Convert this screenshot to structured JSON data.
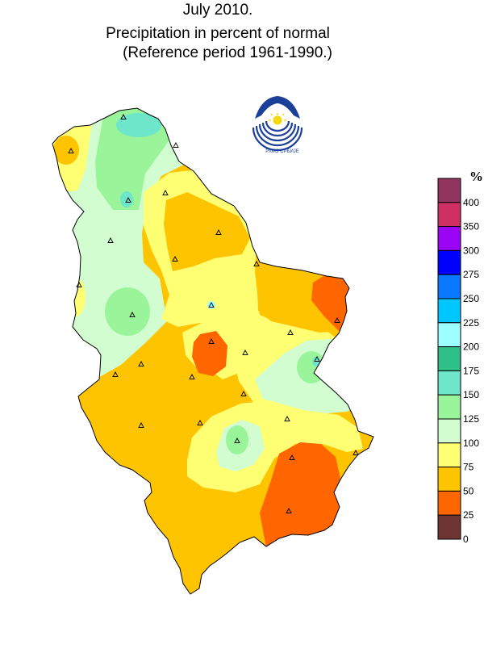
{
  "title": {
    "line1": "July 2010.",
    "line2": "Precipitation in percent of normal",
    "line3": "(Reference period 1961-1990.)"
  },
  "logo": {
    "text": "РХМЗ СРБИЈЕ",
    "primary_color": "#1c3f9a",
    "sun_color": "#f5d90a"
  },
  "legend": {
    "unit": "%",
    "ticks": [
      "400",
      "350",
      "300",
      "275",
      "250",
      "225",
      "200",
      "175",
      "150",
      "125",
      "100",
      "75",
      "50",
      "25",
      "0"
    ],
    "bins": [
      {
        "from": 400,
        "color": "#93365f"
      },
      {
        "from": 350,
        "to": 400,
        "color": "#cf2f62"
      },
      {
        "from": 300,
        "to": 350,
        "color": "#9a06f5"
      },
      {
        "from": 275,
        "to": 300,
        "color": "#0000ff"
      },
      {
        "from": 250,
        "to": 275,
        "color": "#0a78ff"
      },
      {
        "from": 225,
        "to": 250,
        "color": "#00c6ff"
      },
      {
        "from": 200,
        "to": 225,
        "color": "#9dffff"
      },
      {
        "from": 175,
        "to": 200,
        "color": "#2fc08a"
      },
      {
        "from": 150,
        "to": 175,
        "color": "#6ee6c9"
      },
      {
        "from": 125,
        "to": 150,
        "color": "#9af59a"
      },
      {
        "from": 100,
        "to": 125,
        "color": "#d1fdd1"
      },
      {
        "from": 75,
        "to": 100,
        "color": "#ffff73"
      },
      {
        "from": 50,
        "to": 75,
        "color": "#ffc400"
      },
      {
        "from": 25,
        "to": 50,
        "color": "#ff6600"
      },
      {
        "from": 0,
        "to": 25,
        "color": "#6e3533"
      }
    ]
  },
  "map": {
    "region": "Serbia",
    "colors": {
      "p0_25": "#6e3533",
      "p25_50": "#ff6600",
      "p50_75": "#ffc400",
      "p75_100": "#ffff73",
      "p100_125": "#d1fdd1",
      "p125_150": "#9af59a",
      "p150_175": "#6ee6c9",
      "p200_225": "#9dffff"
    },
    "station_icon": "triangle-station-icon"
  }
}
